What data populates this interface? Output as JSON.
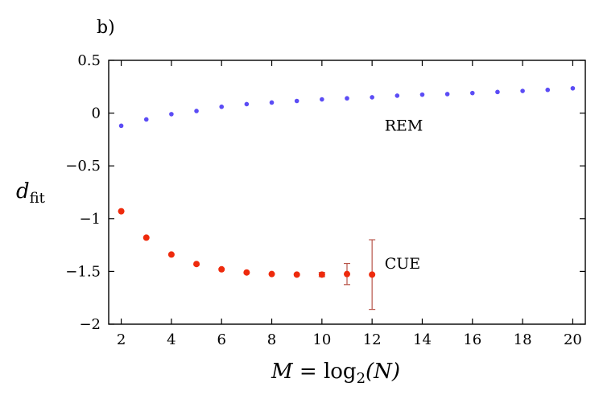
{
  "chart_data": {
    "type": "scatter",
    "panel_label": "b)",
    "xlabel": "M = log2(N)",
    "xlabel_parts": {
      "var": "M",
      "eq": " = log",
      "sub": "2",
      "arg": "(N)"
    },
    "ylabel": "d_fit",
    "ylabel_parts": {
      "var": "d",
      "sub": "fit"
    },
    "xlim": [
      1.5,
      20.5
    ],
    "ylim": [
      -2,
      0.5
    ],
    "xticks": [
      2,
      4,
      6,
      8,
      10,
      12,
      14,
      16,
      18,
      20
    ],
    "xtick_labels": [
      "2",
      "4",
      "6",
      "8",
      "10",
      "12",
      "14",
      "16",
      "18",
      "20"
    ],
    "yticks": [
      0.5,
      0,
      -0.5,
      -1,
      -1.5,
      -2
    ],
    "ytick_labels": [
      "0.5",
      "0",
      "−0.5",
      "−1",
      "−1.5",
      "−2"
    ],
    "grid": false,
    "series": [
      {
        "name": "REM",
        "color": "#5b4cf5",
        "x": [
          2,
          3,
          4,
          5,
          6,
          7,
          8,
          9,
          10,
          11,
          12,
          13,
          14,
          15,
          16,
          17,
          18,
          19,
          20
        ],
        "y": [
          -0.12,
          -0.06,
          -0.01,
          0.02,
          0.06,
          0.085,
          0.1,
          0.115,
          0.13,
          0.14,
          0.15,
          0.165,
          0.175,
          0.18,
          0.19,
          0.2,
          0.21,
          0.22,
          0.235
        ]
      },
      {
        "name": "CUE",
        "color": "#ee2a0c",
        "errorbar_color": "#b8554a",
        "x": [
          2,
          3,
          4,
          5,
          6,
          7,
          8,
          9,
          10,
          11,
          12
        ],
        "y": [
          -0.93,
          -1.18,
          -1.34,
          -1.43,
          -1.48,
          -1.51,
          -1.525,
          -1.53,
          -1.53,
          -1.525,
          -1.53
        ],
        "yerr": [
          0,
          0,
          0,
          0,
          0,
          0,
          0,
          0,
          0.02,
          0.1,
          0.33
        ]
      }
    ],
    "annotations": [
      {
        "text": "REM",
        "x": 12.5,
        "y": -0.12
      },
      {
        "text": "CUE",
        "x": 12.5,
        "y": -1.43
      }
    ]
  }
}
